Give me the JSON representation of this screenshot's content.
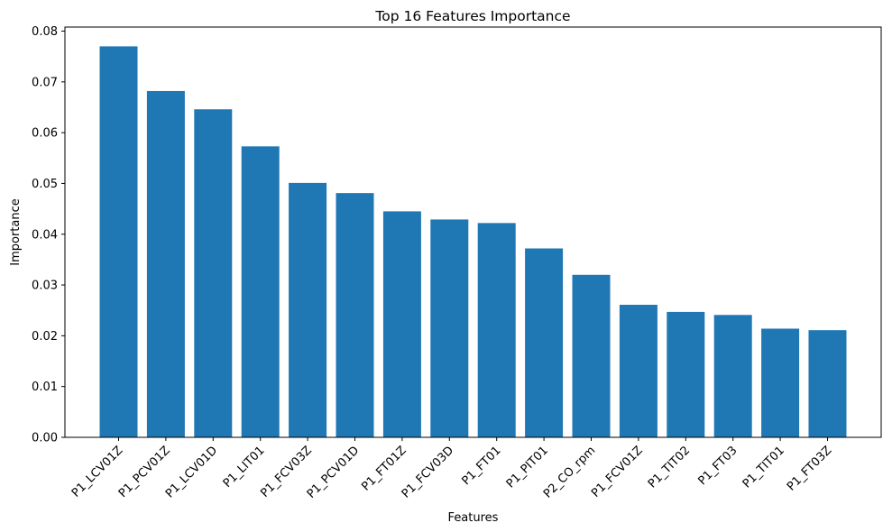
{
  "chart_data": {
    "type": "bar",
    "title": "Top 16 Features Importance",
    "xlabel": "Features",
    "ylabel": "Importance",
    "categories": [
      "P1_LCV01Z",
      "P1_PCV01Z",
      "P1_LCV01D",
      "P1_LIT01",
      "P1_FCV03Z",
      "P1_PCV01D",
      "P1_FT01Z",
      "P1_FCV03D",
      "P1_FT01",
      "P1_PIT01",
      "P2_CO_rpm",
      "P1_FCV01Z",
      "P1_TIT02",
      "P1_FT03",
      "P1_TIT01",
      "P1_FT03Z"
    ],
    "values": [
      0.077,
      0.0682,
      0.0646,
      0.0573,
      0.0501,
      0.0481,
      0.0445,
      0.0429,
      0.0422,
      0.0372,
      0.032,
      0.0261,
      0.0247,
      0.0241,
      0.0214,
      0.0211
    ],
    "ylim": [
      0,
      0.0808
    ],
    "yticks": [
      0.0,
      0.01,
      0.02,
      0.03,
      0.04,
      0.05,
      0.06,
      0.07,
      0.08
    ],
    "ytick_labels": [
      "0.00",
      "0.01",
      "0.02",
      "0.03",
      "0.04",
      "0.05",
      "0.06",
      "0.07",
      "0.08"
    ],
    "bar_color": "#1f77b4",
    "grid": false,
    "legend": "none"
  }
}
